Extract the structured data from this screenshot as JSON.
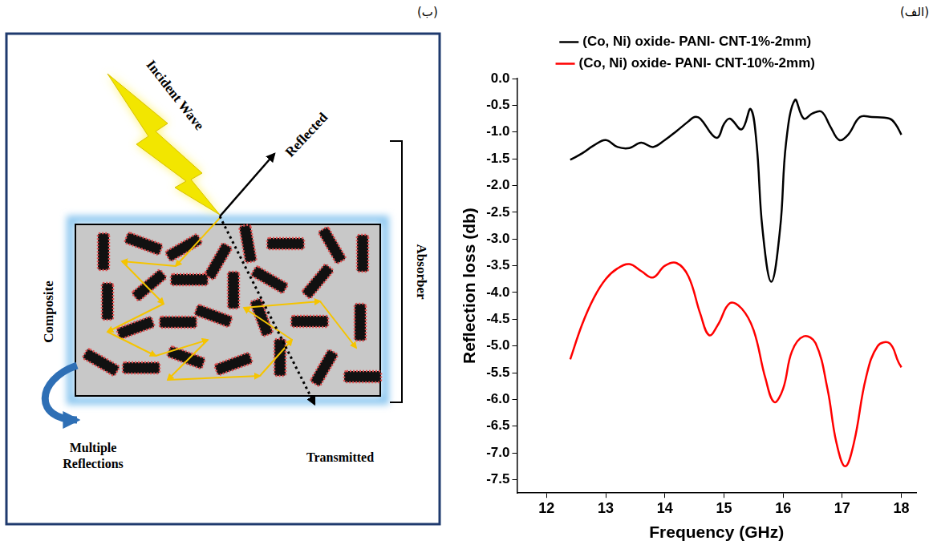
{
  "chart_data": {
    "type": "line",
    "x_label": "Frequency (GHz)",
    "y_label": "Reflection loss (db)",
    "xlim": [
      11.5,
      18.25
    ],
    "xticks": [
      12,
      13,
      14,
      15,
      16,
      17,
      18
    ],
    "ylim": [
      -7.75,
      0
    ],
    "yticks": [
      {
        "value": 0,
        "label": "0.0"
      },
      -0.5,
      {
        "value": -1,
        "label": "-1.0"
      },
      -1.5,
      {
        "value": -2,
        "label": "-2.0"
      },
      -2.5,
      {
        "value": -3,
        "label": "-3.0"
      },
      -3.5,
      {
        "value": -4,
        "label": "-4.0"
      },
      -4.5,
      {
        "value": -5,
        "label": "-5.0"
      },
      -5.5,
      {
        "value": -6,
        "label": "-6.0"
      },
      -6.5,
      {
        "value": -7,
        "label": "-7.0"
      },
      -7.5
    ],
    "grid": false,
    "legend": "top",
    "series": [
      {
        "name": "(Co, Ni) oxide- PANI- CNT-1%-2mm)",
        "color": "#000000",
        "x": [
          12.4,
          12.6,
          12.8,
          13.0,
          13.2,
          13.4,
          13.6,
          13.8,
          14.0,
          14.2,
          14.4,
          14.5,
          14.6,
          14.8,
          14.9,
          15.0,
          15.1,
          15.3,
          15.45,
          15.55,
          15.65,
          15.8,
          15.95,
          16.05,
          16.2,
          16.35,
          16.5,
          16.65,
          16.8,
          16.95,
          17.1,
          17.3,
          17.5,
          17.8,
          17.9,
          18.0
        ],
        "values": [
          -1.52,
          -1.4,
          -1.25,
          -1.15,
          -1.28,
          -1.3,
          -1.2,
          -1.28,
          -1.15,
          -0.98,
          -0.8,
          -0.72,
          -0.75,
          -1.05,
          -1.1,
          -0.85,
          -0.75,
          -0.95,
          -0.57,
          -1.2,
          -2.8,
          -3.8,
          -2.8,
          -1.2,
          -0.4,
          -0.75,
          -0.65,
          -0.62,
          -0.9,
          -1.15,
          -1.05,
          -0.72,
          -0.72,
          -0.75,
          -0.85,
          -1.05
        ]
      },
      {
        "name": "(Co, Ni) oxide- PANI- CNT-10%-2mm)",
        "color": "#ff0000",
        "x": [
          12.4,
          12.6,
          12.8,
          13.0,
          13.2,
          13.4,
          13.6,
          13.8,
          14.0,
          14.2,
          14.4,
          14.6,
          14.75,
          14.9,
          15.1,
          15.3,
          15.5,
          15.7,
          15.85,
          16.0,
          16.15,
          16.35,
          16.55,
          16.75,
          16.9,
          17.05,
          17.2,
          17.4,
          17.6,
          17.8,
          17.95,
          18.0
        ],
        "values": [
          -5.25,
          -4.6,
          -4.1,
          -3.75,
          -3.55,
          -3.47,
          -3.6,
          -3.72,
          -3.5,
          -3.45,
          -3.7,
          -4.4,
          -4.8,
          -4.6,
          -4.2,
          -4.3,
          -4.7,
          -5.6,
          -6.05,
          -5.8,
          -5.1,
          -4.82,
          -4.95,
          -5.8,
          -6.8,
          -7.25,
          -6.8,
          -5.6,
          -5.0,
          -4.95,
          -5.3,
          -5.4
        ]
      }
    ]
  },
  "panel_labels": {
    "chart": "(الف)",
    "diagram": "(ب)"
  },
  "diagram": {
    "incident": "Incident Wave",
    "reflected": "Reflected",
    "composite": "Composite",
    "absorber": "Absorber",
    "multiple_reflections": "Multiple Reflections",
    "transmitted": "Transmitted"
  }
}
